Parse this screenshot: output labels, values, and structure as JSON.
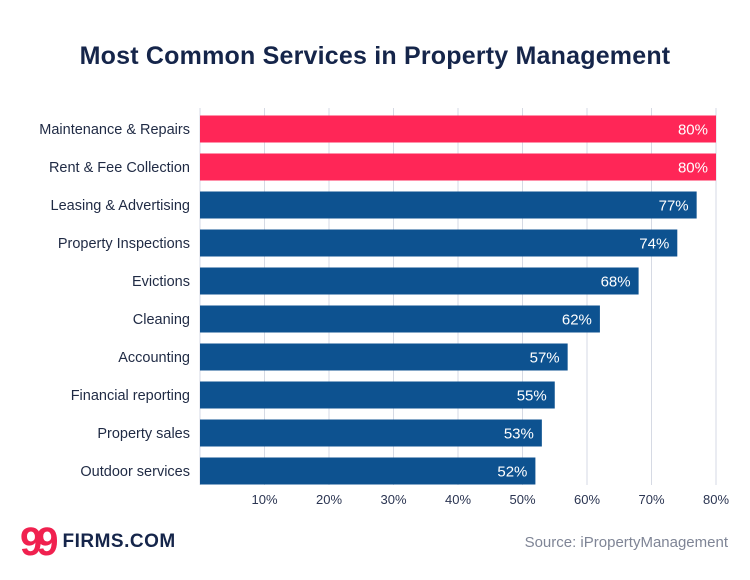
{
  "title": "Most Common Services in Property Management",
  "logo": {
    "mark": "99",
    "text": "FIRMS.COM"
  },
  "source": "Source: iPropertyManagement",
  "colors": {
    "highlight": "#ff2657",
    "primary": "#0d5290",
    "grid": "#d6dae4",
    "text": "#1f2a44"
  },
  "chart_data": {
    "type": "bar",
    "orientation": "horizontal",
    "categories": [
      "Maintenance & Repairs",
      "Rent & Fee Collection",
      "Leasing & Advertising",
      "Property Inspections",
      "Evictions",
      "Cleaning",
      "Accounting",
      "Financial reporting",
      "Property sales",
      "Outdoor services"
    ],
    "values": [
      80,
      80,
      77,
      74,
      68,
      62,
      57,
      55,
      53,
      52
    ],
    "value_labels": [
      "80%",
      "80%",
      "77%",
      "74%",
      "68%",
      "62%",
      "57%",
      "55%",
      "53%",
      "52%"
    ],
    "highlighted": [
      true,
      true,
      false,
      false,
      false,
      false,
      false,
      false,
      false,
      false
    ],
    "xlim": [
      0,
      80
    ],
    "xticks": [
      10,
      20,
      30,
      40,
      50,
      60,
      70,
      80
    ],
    "xtick_labels": [
      "10%",
      "20%",
      "30%",
      "40%",
      "50%",
      "60%",
      "70%",
      "80%"
    ],
    "grid": true,
    "title": "Most Common Services in Property Management",
    "xlabel": "",
    "ylabel": ""
  }
}
